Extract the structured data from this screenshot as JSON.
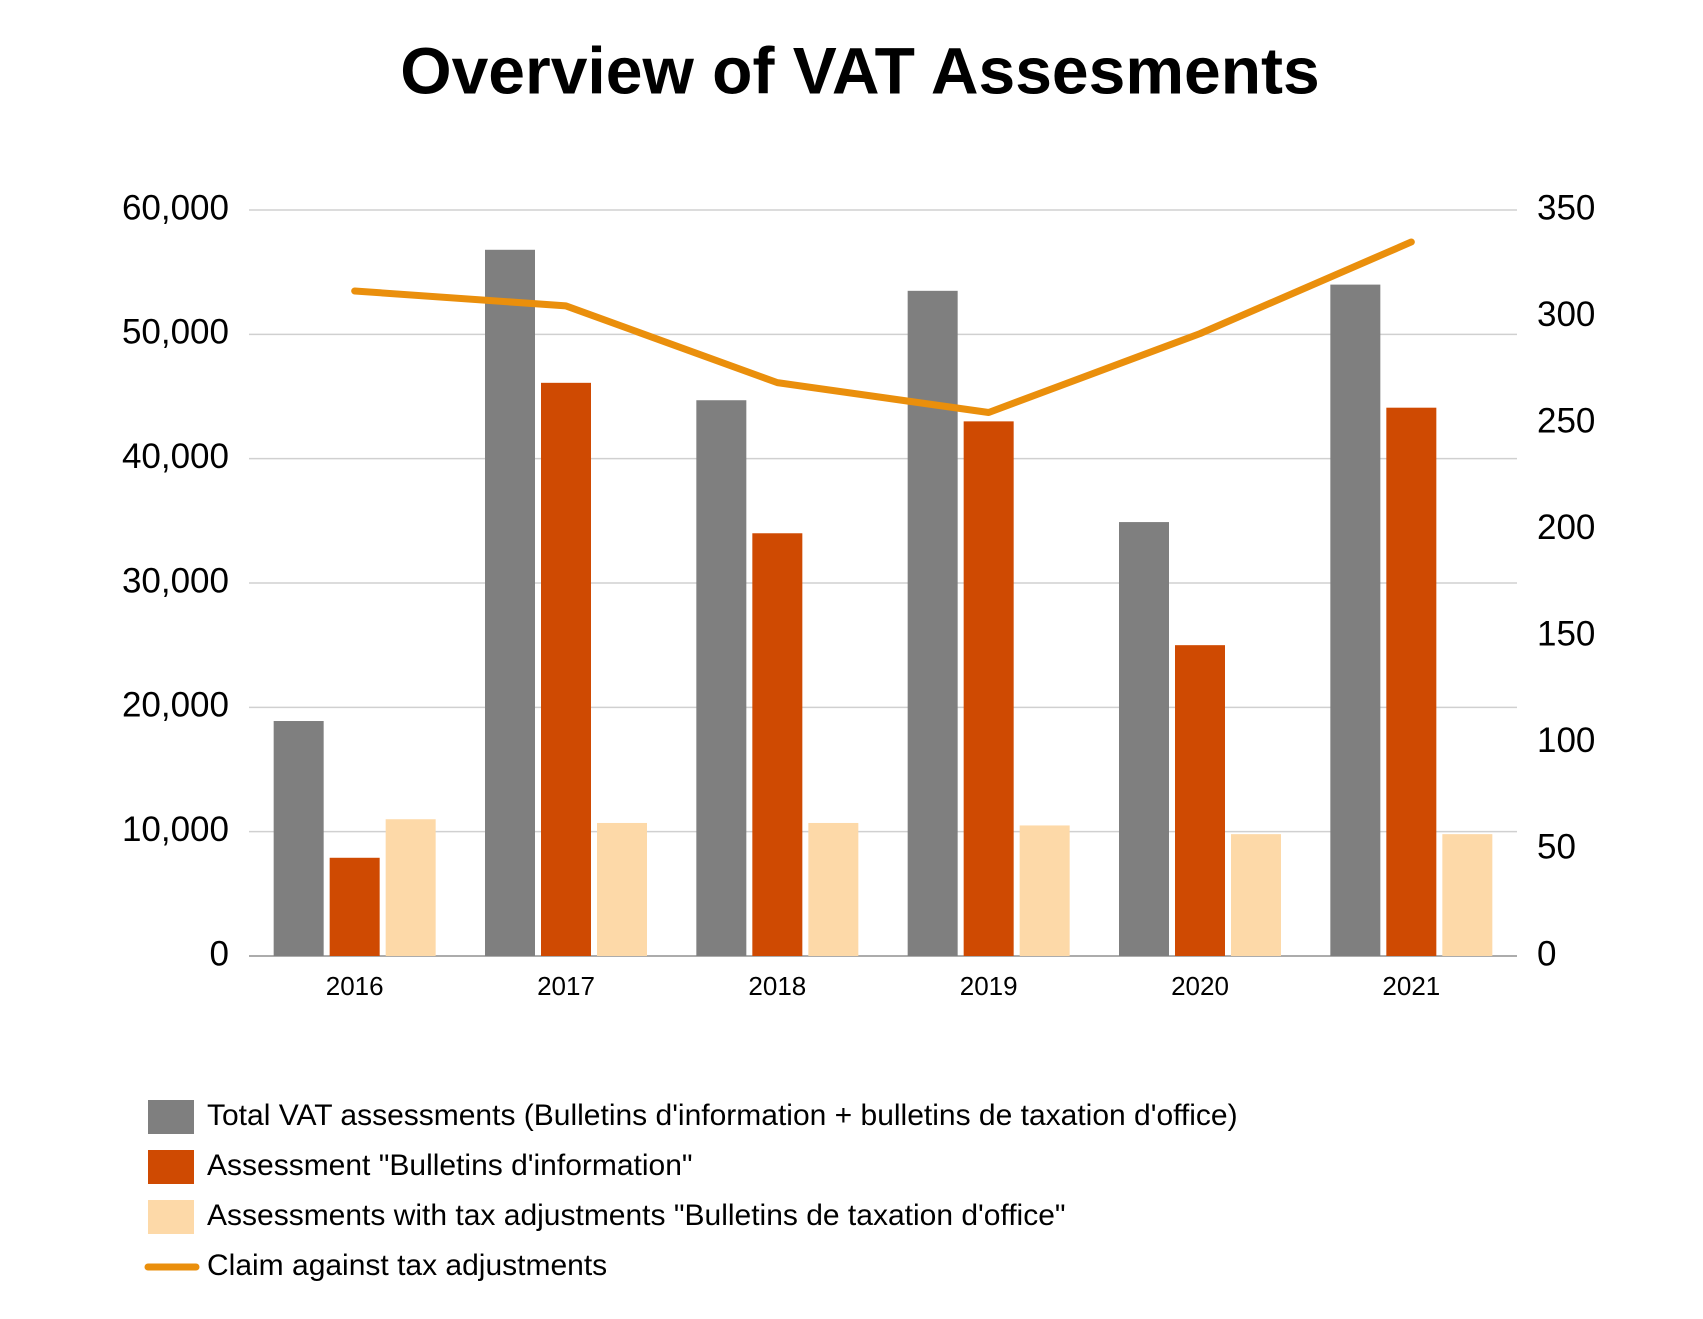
{
  "chart_data": {
    "type": "bar",
    "title": "Overview of VAT Assesments",
    "categories": [
      "2016",
      "2017",
      "2018",
      "2019",
      "2020",
      "2021"
    ],
    "series": [
      {
        "name": "Total VAT assessments (Bulletins d'information + bulletins de taxation d'office)",
        "color": "#7f7f7f",
        "type": "bar",
        "values": [
          18900,
          56800,
          44700,
          53500,
          34900,
          54000
        ]
      },
      {
        "name": "Assessment \"Bulletins d'information\"",
        "color": "#cf4a02",
        "type": "bar",
        "values": [
          7900,
          46100,
          34000,
          43000,
          25000,
          44100
        ]
      },
      {
        "name": "Assessments with tax adjustments \"Bulletins de taxation d'office\"",
        "color": "#fdd9a8",
        "type": "bar",
        "values": [
          11000,
          10700,
          10700,
          10500,
          9800,
          9800
        ]
      },
      {
        "name": "Claim against tax adjustments",
        "color": "#ea8f0c",
        "type": "line",
        "axis": "y2",
        "values": [
          312,
          305,
          269,
          255,
          292,
          335
        ]
      }
    ],
    "ylim": [
      0,
      60000
    ],
    "yticks": [
      0,
      {
        "value": 10000,
        "label": "10,000"
      },
      {
        "value": 20000,
        "label": "20,000"
      },
      {
        "value": 30000,
        "label": "30,000"
      },
      {
        "value": 40000,
        "label": "40,000"
      },
      {
        "value": 50000,
        "label": "50,000"
      },
      {
        "value": 60000,
        "label": "60,000"
      }
    ],
    "y2lim": [
      0,
      350
    ],
    "y2ticks": [
      0,
      50,
      100,
      150,
      200,
      250,
      300,
      350
    ],
    "grid": true,
    "legend": "bottom"
  }
}
